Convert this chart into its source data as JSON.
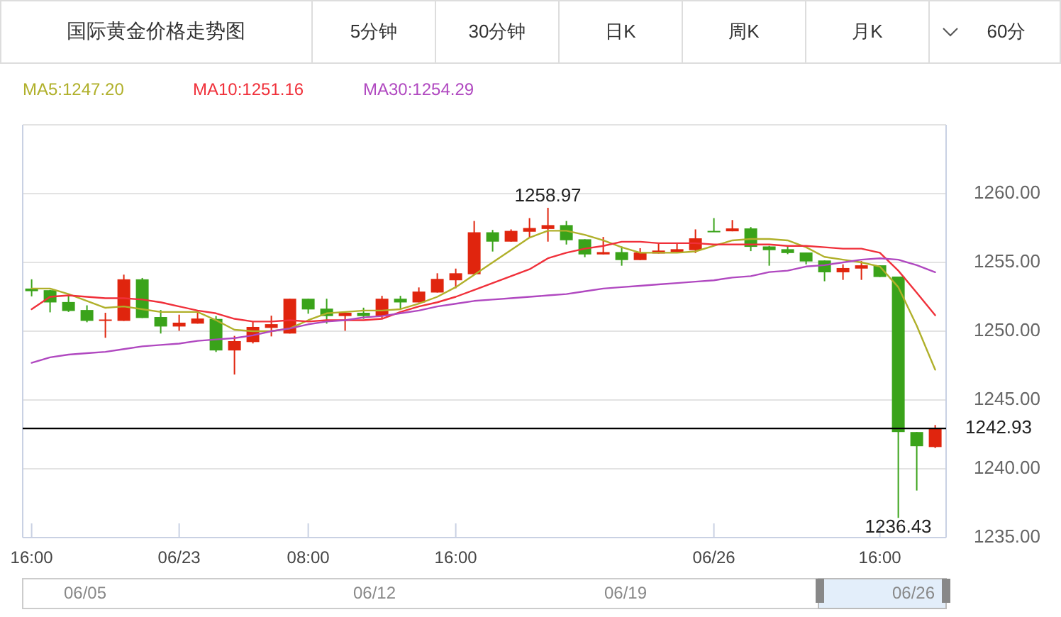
{
  "chart_data": {
    "type": "candlestick",
    "title": "国际黄金价格走势图",
    "categories": [
      "16:00",
      null,
      null,
      null,
      null,
      null,
      null,
      null,
      "06/23",
      null,
      null,
      null,
      null,
      null,
      null,
      "08:00",
      null,
      null,
      null,
      null,
      null,
      null,
      null,
      "16:00",
      null,
      null,
      null,
      null,
      null,
      null,
      null,
      null,
      null,
      null,
      null,
      null,
      null,
      "06/26",
      null,
      null,
      null,
      null,
      null,
      null,
      null,
      null,
      "16:00",
      null,
      null,
      null
    ],
    "ohlc": [
      [
        1253.1,
        1253.77,
        1252.53,
        1252.91
      ],
      [
        1252.98,
        1253.0,
        1251.37,
        1252.09
      ],
      [
        1252.12,
        1252.64,
        1251.4,
        1251.47
      ],
      [
        1251.54,
        1251.88,
        1250.65,
        1250.75
      ],
      [
        1250.75,
        1251.34,
        1249.52,
        1250.85
      ],
      [
        1250.75,
        1254.11,
        1250.75,
        1253.77
      ],
      [
        1253.77,
        1253.87,
        1250.96,
        1250.96
      ],
      [
        1251.03,
        1251.54,
        1249.83,
        1250.34
      ],
      [
        1250.34,
        1251.2,
        1250.03,
        1250.62
      ],
      [
        1250.55,
        1251.51,
        1250.55,
        1250.92
      ],
      [
        1250.89,
        1251.1,
        1248.49,
        1248.6
      ],
      [
        1248.6,
        1249.66,
        1246.85,
        1249.28
      ],
      [
        1249.21,
        1250.68,
        1249.11,
        1250.31
      ],
      [
        1250.24,
        1251.13,
        1249.62,
        1250.51
      ],
      [
        1249.83,
        1252.36,
        1249.83,
        1252.36
      ],
      [
        1252.36,
        1252.36,
        1251.27,
        1251.58
      ],
      [
        1251.64,
        1252.36,
        1250.55,
        1251.1
      ],
      [
        1251.1,
        1251.34,
        1250.03,
        1251.34
      ],
      [
        1251.34,
        1251.71,
        1250.89,
        1251.1
      ],
      [
        1251.1,
        1252.57,
        1250.96,
        1252.36
      ],
      [
        1252.36,
        1252.57,
        1251.61,
        1252.09
      ],
      [
        1252.09,
        1253.18,
        1252.09,
        1252.88
      ],
      [
        1252.81,
        1254.21,
        1252.81,
        1253.8
      ],
      [
        1253.7,
        1254.55,
        1253.12,
        1254.21
      ],
      [
        1254.14,
        1258.01,
        1254.14,
        1257.19
      ],
      [
        1257.19,
        1257.36,
        1255.79,
        1256.51
      ],
      [
        1256.51,
        1257.4,
        1256.51,
        1257.29
      ],
      [
        1257.23,
        1258.22,
        1256.82,
        1257.5
      ],
      [
        1257.43,
        1258.97,
        1256.51,
        1257.71
      ],
      [
        1257.71,
        1258.01,
        1256.3,
        1256.61
      ],
      [
        1256.68,
        1256.68,
        1255.38,
        1255.58
      ],
      [
        1255.58,
        1256.85,
        1255.58,
        1255.75
      ],
      [
        1255.75,
        1256.16,
        1254.76,
        1255.17
      ],
      [
        1255.17,
        1256.03,
        1255.17,
        1255.72
      ],
      [
        1255.65,
        1256.4,
        1255.65,
        1255.86
      ],
      [
        1255.75,
        1256.44,
        1255.75,
        1255.96
      ],
      [
        1255.89,
        1257.4,
        1255.68,
        1256.75
      ],
      [
        1257.29,
        1258.22,
        1257.23,
        1257.23
      ],
      [
        1257.26,
        1258.08,
        1257.26,
        1257.47
      ],
      [
        1257.47,
        1257.57,
        1255.82,
        1256.13
      ],
      [
        1256.16,
        1256.2,
        1254.76,
        1255.89
      ],
      [
        1255.96,
        1256.23,
        1255.6,
        1255.68
      ],
      [
        1255.72,
        1255.72,
        1254.86,
        1255.07
      ],
      [
        1255.14,
        1255.14,
        1253.63,
        1254.28
      ],
      [
        1254.28,
        1254.86,
        1253.73,
        1254.59
      ],
      [
        1254.55,
        1255.1,
        1253.73,
        1254.79
      ],
      [
        1254.79,
        1254.79,
        1253.94,
        1253.94
      ],
      [
        1253.97,
        1253.97,
        1236.43,
        1242.67
      ],
      [
        1242.67,
        1242.67,
        1238.42,
        1241.64
      ],
      [
        1241.58,
        1243.18,
        1241.51,
        1242.93
      ]
    ],
    "colors": [
      "#3aa31a",
      "#3aa31a",
      "#3aa31a",
      "#3aa31a",
      "#e0250e",
      "#e0250e",
      "#3aa31a",
      "#3aa31a",
      "#e0250e",
      "#e0250e",
      "#3aa31a",
      "#e0250e",
      "#e0250e",
      "#e0250e",
      "#e0250e",
      "#3aa31a",
      "#3aa31a",
      "#e0250e",
      "#3aa31a",
      "#e0250e",
      "#3aa31a",
      "#e0250e",
      "#e0250e",
      "#e0250e",
      "#e0250e",
      "#3aa31a",
      "#e0250e",
      "#e0250e",
      "#e0250e",
      "#3aa31a",
      "#3aa31a",
      "#e0250e",
      "#3aa31a",
      "#e0250e",
      "#e0250e",
      "#e0250e",
      "#e0250e",
      "#3aa31a",
      "#e0250e",
      "#3aa31a",
      "#3aa31a",
      "#3aa31a",
      "#3aa31a",
      "#3aa31a",
      "#e0250e",
      "#e0250e",
      "#3aa31a",
      "#3aa31a",
      "#3aa31a",
      "#e0250e"
    ],
    "series": [
      {
        "name": "MA5:1247.20",
        "type": "line",
        "color": "#b0b02a",
        "values": [
          1253.1,
          1253.1,
          1252.7,
          1252.2,
          1251.7,
          1251.8,
          1251.6,
          1251.4,
          1251.4,
          1251.4,
          1250.8,
          1250.1,
          1250.0,
          1250.0,
          1250.2,
          1250.8,
          1251.3,
          1251.4,
          1251.5,
          1251.5,
          1251.6,
          1252.0,
          1252.5,
          1253.2,
          1254.1,
          1255.0,
          1255.9,
          1256.8,
          1257.3,
          1257.3,
          1257.0,
          1256.6,
          1256.1,
          1255.7,
          1255.7,
          1255.7,
          1255.8,
          1256.2,
          1256.6,
          1256.7,
          1256.7,
          1256.6,
          1256.1,
          1255.4,
          1255.2,
          1255.0,
          1254.7,
          1253.2,
          1250.4,
          1247.2
        ]
      },
      {
        "name": "MA10:1251.16",
        "type": "line",
        "color": "#f0303a",
        "values": [
          1251.6,
          1252.5,
          1252.6,
          1252.5,
          1252.4,
          1252.4,
          1252.3,
          1252.1,
          1251.8,
          1251.5,
          1251.3,
          1250.9,
          1250.7,
          1250.7,
          1250.8,
          1250.7,
          1250.8,
          1250.8,
          1250.8,
          1250.9,
          1251.4,
          1251.8,
          1252.1,
          1252.5,
          1253.0,
          1253.5,
          1254.0,
          1254.5,
          1255.3,
          1255.7,
          1256.0,
          1256.2,
          1256.5,
          1256.5,
          1256.4,
          1256.4,
          1256.4,
          1256.3,
          1256.3,
          1256.3,
          1256.3,
          1256.2,
          1256.2,
          1256.1,
          1256.0,
          1256.0,
          1255.7,
          1254.4,
          1252.8,
          1251.16
        ]
      },
      {
        "name": "MA30:1254.29",
        "type": "line",
        "color": "#b048c0",
        "values": [
          1247.7,
          1248.1,
          1248.3,
          1248.4,
          1248.5,
          1248.7,
          1248.9,
          1249.0,
          1249.1,
          1249.3,
          1249.4,
          1249.5,
          1249.7,
          1250.0,
          1250.2,
          1250.5,
          1250.7,
          1250.8,
          1251.0,
          1251.1,
          1251.3,
          1251.5,
          1251.8,
          1252.0,
          1252.2,
          1252.3,
          1252.4,
          1252.5,
          1252.6,
          1252.7,
          1252.9,
          1253.1,
          1253.2,
          1253.3,
          1253.4,
          1253.5,
          1253.6,
          1253.7,
          1253.9,
          1254.0,
          1254.3,
          1254.4,
          1254.7,
          1254.8,
          1255.0,
          1255.2,
          1255.3,
          1255.2,
          1254.8,
          1254.29
        ]
      }
    ],
    "ylim": [
      1235,
      1265
    ],
    "yticks": [
      {
        "value": 1235,
        "label": "1235.00"
      },
      {
        "value": 1240,
        "label": "1240.00"
      },
      {
        "value": 1245,
        "label": "1245.00"
      },
      {
        "value": 1250,
        "label": "1250.00"
      },
      {
        "value": 1255,
        "label": "1255.00"
      },
      {
        "value": 1260,
        "label": "1260.00"
      }
    ],
    "grid": "y",
    "legend": "top",
    "marker": "none",
    "line_style": "solid",
    "ref_lines": [
      {
        "axis": "y",
        "value": 1242.93,
        "label": "1242.93",
        "color": "#000000"
      }
    ],
    "annotations": [
      "5分钟",
      "30分钟",
      "日K",
      "周K",
      "月K",
      "60分",
      "06/05",
      "06/12",
      "06/19",
      "06/26",
      {
        "text": "1258.97",
        "y": 1258.97
      },
      {
        "text": "1236.43",
        "y": 1236.43
      }
    ]
  }
}
